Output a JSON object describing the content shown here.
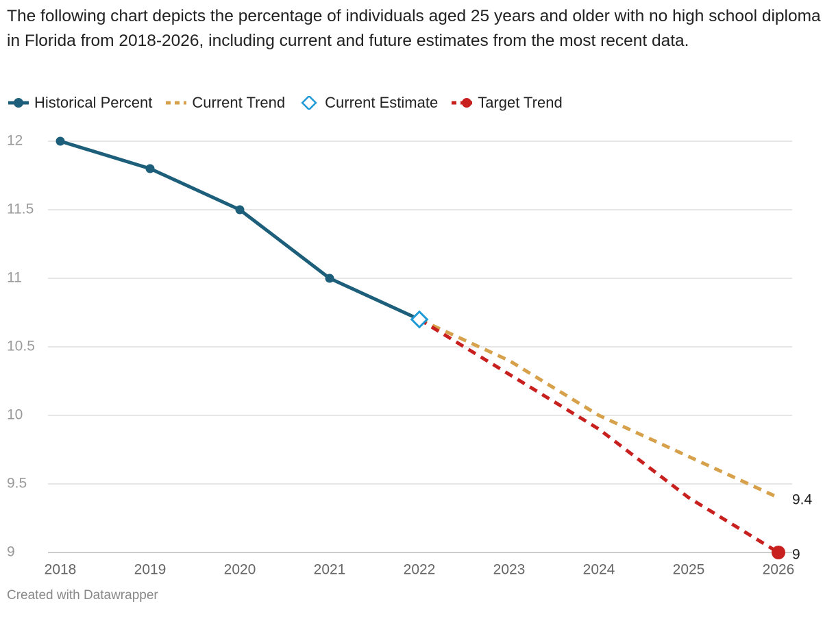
{
  "chart_data": {
    "type": "line",
    "title": "The following chart depicts the percentage of individuals aged 25 years and older with no high school diploma in Florida from 2018-2026, including current and future estimates from the most recent data.",
    "footer": "Created with Datawrapper",
    "x": [
      2018,
      2019,
      2020,
      2021,
      2022,
      2023,
      2024,
      2025,
      2026
    ],
    "xlim": [
      2018,
      2026
    ],
    "xticks": [
      2018,
      2019,
      2020,
      2021,
      2022,
      2023,
      2024,
      2025,
      2026
    ],
    "ylim": [
      9,
      12
    ],
    "yticks": [
      9,
      9.5,
      10,
      10.5,
      11,
      11.5,
      12
    ],
    "grid": true,
    "legend": "top",
    "series": [
      {
        "name": "Historical Percent",
        "color": "#1d5f7a",
        "line": "solid",
        "markers": "all",
        "end_label": false,
        "values": [
          12,
          11.8,
          11.5,
          11,
          10.7,
          null,
          null,
          null,
          null
        ]
      },
      {
        "name": "Current Trend",
        "color": "#d6a14a",
        "line": "dashed",
        "markers": "none",
        "end_label": true,
        "values": [
          null,
          null,
          null,
          null,
          10.7,
          10.4,
          10.0,
          9.7,
          9.4
        ]
      },
      {
        "name": "Current Estimate",
        "color": "#1f9ad6",
        "line": "none",
        "markers": "diamond",
        "end_label": false,
        "values": [
          null,
          null,
          null,
          null,
          10.7,
          null,
          null,
          null,
          null
        ]
      },
      {
        "name": "Target Trend",
        "color": "#c8201f",
        "line": "dashed",
        "markers": "last",
        "end_label": true,
        "values": [
          null,
          null,
          null,
          null,
          10.7,
          10.3,
          9.9,
          9.4,
          9
        ]
      }
    ]
  }
}
